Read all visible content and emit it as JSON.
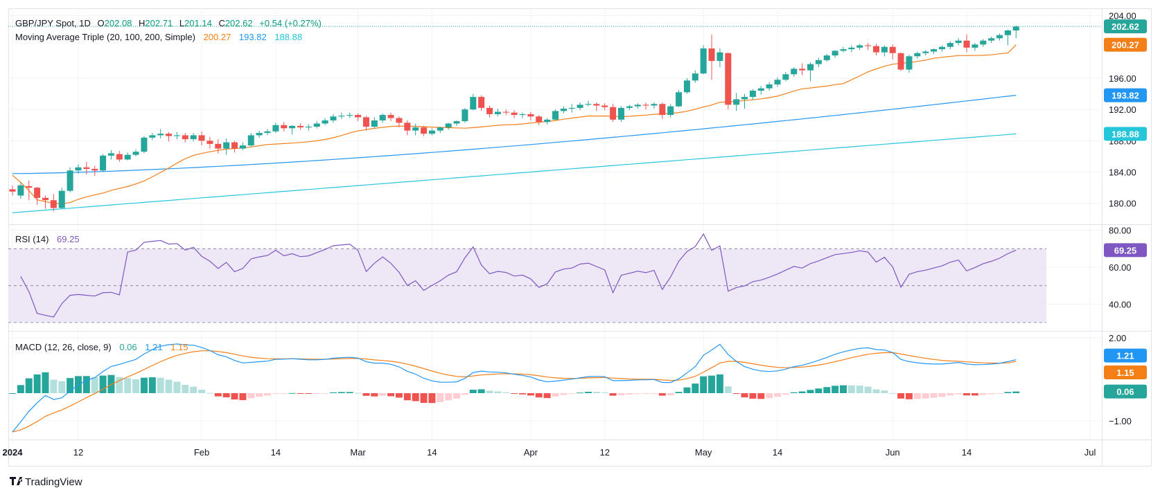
{
  "chart_data": {
    "type": "candlestick",
    "symbol": "GBP/JPY Spot",
    "interval": "1D",
    "ohlc_header": {
      "open_label": "O",
      "open": "202.08",
      "high_label": "H",
      "high": "202.71",
      "low_label": "L",
      "low": "201.14",
      "close_label": "C",
      "close": "202.62",
      "change": "+0.54 (+0.27%)"
    },
    "last_price": 202.62,
    "last_price_label": "202.62",
    "ylim": [
      177.5,
      204.4
    ],
    "y_ticks": [
      180,
      184,
      188,
      192,
      196,
      204
    ],
    "y_tick_labels": [
      "180.00",
      "184.00",
      "188.00",
      "192.00",
      "196.00",
      "204.00"
    ],
    "x_tick_labels": [
      {
        "label": "2024",
        "index": 0,
        "bold": true
      },
      {
        "label": "12",
        "index": 8
      },
      {
        "label": "Feb",
        "index": 23
      },
      {
        "label": "14",
        "index": 32
      },
      {
        "label": "Mar",
        "index": 42
      },
      {
        "label": "14",
        "index": 51
      },
      {
        "label": "Apr",
        "index": 63
      },
      {
        "label": "12",
        "index": 72
      },
      {
        "label": "May",
        "index": 84
      },
      {
        "label": "14",
        "index": 93
      },
      {
        "label": "Jun",
        "index": 107
      },
      {
        "label": "14",
        "index": 116
      },
      {
        "label": "Jul",
        "index": 131
      }
    ],
    "candles": [
      [
        181.8,
        182.3,
        181.5,
        181.0
      ],
      [
        181.0,
        182.6,
        182.3,
        180.6
      ],
      [
        182.2,
        182.9,
        182.0,
        180.4
      ],
      [
        182.0,
        182.1,
        180.7,
        179.8
      ],
      [
        180.7,
        181.0,
        180.4,
        179.3
      ],
      [
        180.4,
        181.2,
        179.4,
        179.0
      ],
      [
        179.4,
        182.0,
        181.6,
        179.3
      ],
      [
        181.6,
        184.6,
        184.2,
        181.4
      ],
      [
        184.2,
        185.0,
        184.6,
        183.8
      ],
      [
        184.6,
        185.3,
        184.4,
        183.7
      ],
      [
        184.4,
        184.8,
        184.2,
        183.5
      ],
      [
        184.2,
        186.3,
        186.1,
        184.0
      ],
      [
        186.1,
        186.8,
        186.4,
        185.6
      ],
      [
        186.3,
        186.7,
        185.6,
        185.3
      ],
      [
        185.6,
        186.5,
        186.2,
        185.5
      ],
      [
        186.2,
        186.9,
        186.6,
        186.0
      ],
      [
        186.6,
        188.6,
        188.4,
        186.4
      ],
      [
        188.4,
        189.0,
        188.7,
        188.1
      ],
      [
        188.7,
        189.5,
        188.9,
        188.3
      ],
      [
        188.9,
        189.1,
        188.6,
        187.9
      ],
      [
        188.6,
        189.1,
        188.7,
        188.2
      ],
      [
        188.7,
        189.0,
        188.2,
        187.8
      ],
      [
        188.2,
        189.0,
        188.7,
        187.9
      ],
      [
        188.7,
        189.2,
        188.0,
        187.4
      ],
      [
        188.0,
        188.5,
        187.6,
        187.0
      ],
      [
        187.6,
        188.2,
        187.0,
        186.4
      ],
      [
        187.0,
        188.3,
        187.8,
        186.2
      ],
      [
        187.8,
        188.0,
        187.0,
        186.5
      ],
      [
        187.0,
        187.8,
        187.4,
        186.8
      ],
      [
        187.4,
        189.0,
        188.7,
        187.2
      ],
      [
        188.7,
        189.3,
        189.0,
        188.4
      ],
      [
        189.0,
        189.5,
        189.2,
        188.7
      ],
      [
        189.2,
        190.3,
        190.0,
        189.0
      ],
      [
        190.0,
        190.4,
        189.6,
        189.2
      ],
      [
        189.6,
        190.0,
        189.9,
        188.8
      ],
      [
        189.9,
        190.2,
        189.7,
        189.4
      ],
      [
        189.7,
        190.1,
        189.8,
        189.3
      ],
      [
        189.8,
        190.5,
        190.2,
        189.6
      ],
      [
        190.2,
        190.9,
        190.6,
        190.0
      ],
      [
        190.6,
        191.4,
        191.1,
        190.3
      ],
      [
        191.1,
        191.6,
        191.2,
        190.8
      ],
      [
        191.2,
        191.6,
        191.3,
        190.9
      ],
      [
        191.3,
        191.5,
        191.0,
        190.5
      ],
      [
        191.0,
        191.2,
        189.8,
        189.3
      ],
      [
        189.8,
        191.0,
        190.6,
        189.6
      ],
      [
        190.6,
        191.5,
        191.3,
        190.3
      ],
      [
        191.3,
        191.6,
        190.9,
        190.5
      ],
      [
        190.9,
        191.1,
        190.3,
        189.7
      ],
      [
        190.3,
        190.6,
        189.3,
        188.7
      ],
      [
        189.3,
        190.2,
        189.7,
        188.7
      ],
      [
        189.7,
        189.9,
        188.9,
        188.6
      ],
      [
        188.9,
        189.6,
        189.3,
        188.7
      ],
      [
        189.3,
        189.8,
        189.7,
        189.0
      ],
      [
        189.7,
        190.3,
        190.2,
        189.4
      ],
      [
        190.2,
        190.6,
        190.5,
        189.9
      ],
      [
        190.5,
        192.2,
        192.0,
        190.3
      ],
      [
        192.0,
        194.0,
        193.6,
        191.9
      ],
      [
        193.6,
        193.8,
        192.2,
        191.8
      ],
      [
        192.2,
        192.5,
        191.4,
        191.0
      ],
      [
        191.4,
        192.1,
        191.7,
        191.1
      ],
      [
        191.7,
        192.0,
        191.6,
        191.3
      ],
      [
        191.6,
        191.9,
        191.3,
        190.9
      ],
      [
        191.3,
        191.6,
        191.4,
        190.9
      ],
      [
        191.4,
        191.7,
        191.1,
        190.6
      ],
      [
        191.1,
        191.3,
        190.4,
        190.0
      ],
      [
        190.4,
        190.9,
        190.7,
        190.1
      ],
      [
        190.7,
        192.0,
        191.8,
        190.6
      ],
      [
        191.8,
        192.4,
        192.1,
        191.5
      ],
      [
        192.1,
        192.7,
        192.2,
        191.6
      ],
      [
        192.2,
        192.9,
        192.6,
        191.9
      ],
      [
        192.6,
        193.1,
        192.7,
        192.4
      ],
      [
        192.7,
        192.9,
        192.5,
        191.8
      ],
      [
        192.5,
        192.8,
        192.3,
        191.9
      ],
      [
        192.3,
        192.7,
        190.7,
        190.4
      ],
      [
        190.7,
        192.4,
        192.2,
        190.4
      ],
      [
        192.2,
        192.6,
        192.4,
        191.9
      ],
      [
        192.4,
        192.8,
        192.6,
        192.1
      ],
      [
        192.6,
        192.9,
        192.5,
        192.0
      ],
      [
        192.5,
        192.9,
        192.7,
        192.1
      ],
      [
        192.7,
        192.9,
        191.3,
        190.8
      ],
      [
        191.3,
        192.7,
        192.4,
        191.0
      ],
      [
        192.4,
        194.5,
        194.2,
        192.3
      ],
      [
        194.2,
        196.0,
        195.7,
        194.0
      ],
      [
        195.7,
        197.0,
        196.6,
        195.4
      ],
      [
        196.6,
        200.2,
        199.8,
        196.5
      ],
      [
        199.8,
        201.6,
        198.2,
        195.8
      ],
      [
        198.2,
        199.8,
        199.3,
        197.4
      ],
      [
        199.2,
        199.3,
        192.6,
        192.0
      ],
      [
        192.6,
        194.1,
        193.3,
        191.8
      ],
      [
        193.3,
        194.0,
        193.6,
        192.1
      ],
      [
        193.6,
        194.6,
        194.4,
        193.2
      ],
      [
        194.4,
        195.0,
        194.7,
        193.9
      ],
      [
        194.7,
        195.5,
        195.2,
        194.4
      ],
      [
        195.2,
        196.1,
        195.8,
        194.9
      ],
      [
        195.8,
        196.8,
        196.5,
        195.6
      ],
      [
        196.5,
        197.4,
        197.2,
        196.2
      ],
      [
        197.2,
        197.9,
        197.0,
        196.4
      ],
      [
        197.0,
        198.0,
        197.8,
        195.6
      ],
      [
        197.8,
        198.6,
        198.3,
        197.4
      ],
      [
        198.3,
        199.1,
        198.9,
        198.1
      ],
      [
        198.9,
        199.6,
        199.5,
        198.6
      ],
      [
        199.5,
        200.0,
        199.7,
        199.3
      ],
      [
        199.7,
        200.2,
        199.9,
        199.3
      ],
      [
        199.9,
        200.4,
        200.2,
        199.6
      ],
      [
        200.2,
        200.5,
        200.1,
        199.6
      ],
      [
        200.1,
        200.4,
        199.3,
        198.9
      ],
      [
        199.3,
        200.2,
        200.0,
        198.8
      ],
      [
        200.0,
        200.3,
        199.2,
        198.4
      ],
      [
        199.2,
        199.3,
        197.1,
        196.9
      ],
      [
        197.1,
        199.0,
        198.8,
        196.7
      ],
      [
        198.8,
        199.4,
        199.2,
        198.5
      ],
      [
        199.2,
        199.6,
        199.4,
        198.9
      ],
      [
        199.4,
        199.8,
        199.7,
        199.1
      ],
      [
        199.7,
        200.2,
        200.0,
        199.4
      ],
      [
        200.0,
        200.7,
        200.5,
        199.7
      ],
      [
        200.5,
        201.1,
        200.8,
        200.2
      ],
      [
        200.8,
        201.6,
        199.9,
        199.3
      ],
      [
        199.9,
        200.5,
        200.3,
        199.5
      ],
      [
        200.3,
        201.0,
        200.8,
        200.0
      ],
      [
        200.8,
        201.3,
        201.1,
        200.5
      ],
      [
        201.1,
        201.7,
        201.5,
        200.8
      ],
      [
        201.5,
        202.2,
        202.1,
        200.2
      ],
      [
        202.1,
        202.7,
        202.6,
        201.1
      ]
    ],
    "series": [
      {
        "name": "SMA 20",
        "color": "#f57f17",
        "value": "200.27"
      },
      {
        "name": "SMA 100",
        "color": "#2196f3",
        "value": "193.82"
      },
      {
        "name": "SMA 200",
        "color": "#26c6da",
        "value": "188.88"
      }
    ],
    "ma_indicator": {
      "title": "Moving Average Triple (20, 100, 200, Simple)",
      "v20": "200.27",
      "v100": "193.82",
      "v200": "188.88",
      "ma20_start": 183.6,
      "ma20_end": 200.27,
      "ma100_start": 183.8,
      "ma100_end": 193.82,
      "ma200_start": 178.8,
      "ma200_end": 188.88
    },
    "rsi": {
      "title": "RSI (14)",
      "value_label": "69.25",
      "value": 69.25,
      "color": "#7e57c2",
      "ylim": [
        27,
        81
      ],
      "upper": 70,
      "middle": 50,
      "lower": 30,
      "y_ticks": [
        40,
        60,
        80
      ],
      "y_tick_labels": [
        "40.00",
        "60.00",
        "80.00"
      ]
    },
    "macd": {
      "title": "MACD (12, 26, close, 9)",
      "hist_label": "0.06",
      "macd_label": "1.21",
      "signal_label": "1.15",
      "hist_value": 0.06,
      "macd_value": 1.21,
      "signal_value": 1.15,
      "macd_color": "#2196f3",
      "signal_color": "#f57f17",
      "ylim": [
        -1.6,
        2.1
      ],
      "y_ticks": [
        -1,
        2
      ],
      "y_tick_labels": [
        "−1.00",
        "2.00"
      ]
    },
    "colors": {
      "up": "#26a69a",
      "down": "#ef5350",
      "hist_up_strong": "#26a69a",
      "hist_up_weak": "#b2dfdb",
      "hist_down_strong": "#ef5350",
      "hist_down_weak": "#ffcdd2",
      "grid": "#f0f3fa",
      "rsi_band": "#ede7f6"
    }
  },
  "branding": {
    "logo_text": "TradingView"
  }
}
